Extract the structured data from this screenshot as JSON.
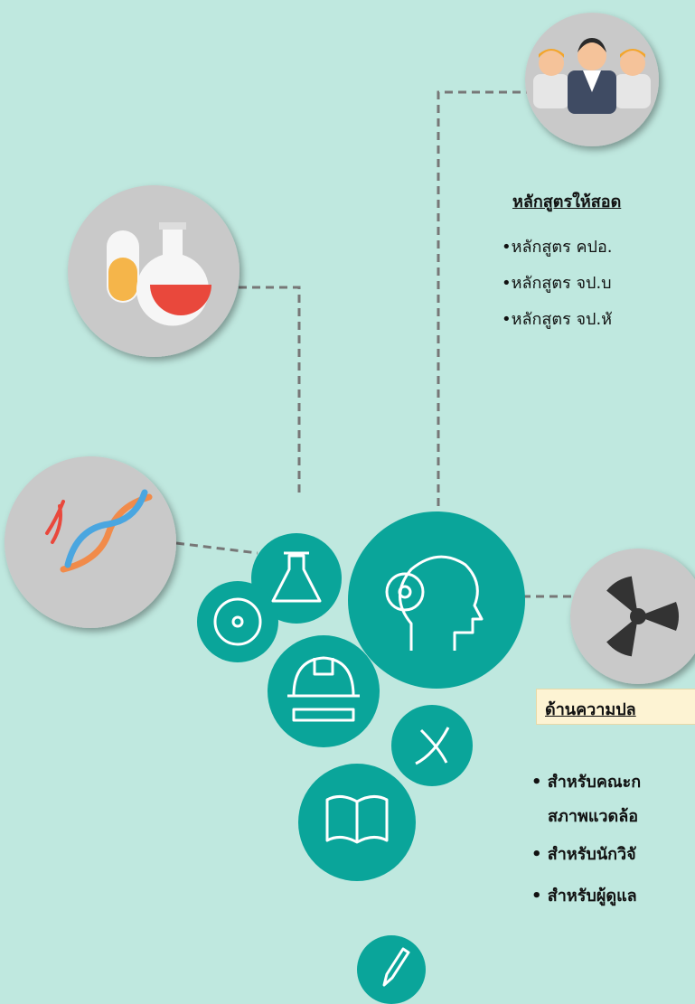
{
  "course_section": {
    "title": "หลักสูตรให้สอด",
    "items": [
      "หลักสูตร คปอ.",
      "หลักสูตร จป.บ",
      "หลักสูตร จป.หั"
    ]
  },
  "safety_section": {
    "title": "ด้านความปล",
    "items": [
      [
        "สำหรับคณะก",
        "สภาพแวดล้อ"
      ],
      [
        "สำหรับนักวิจั"
      ],
      [
        "สำหรับผู้ดูแล"
      ]
    ]
  }
}
